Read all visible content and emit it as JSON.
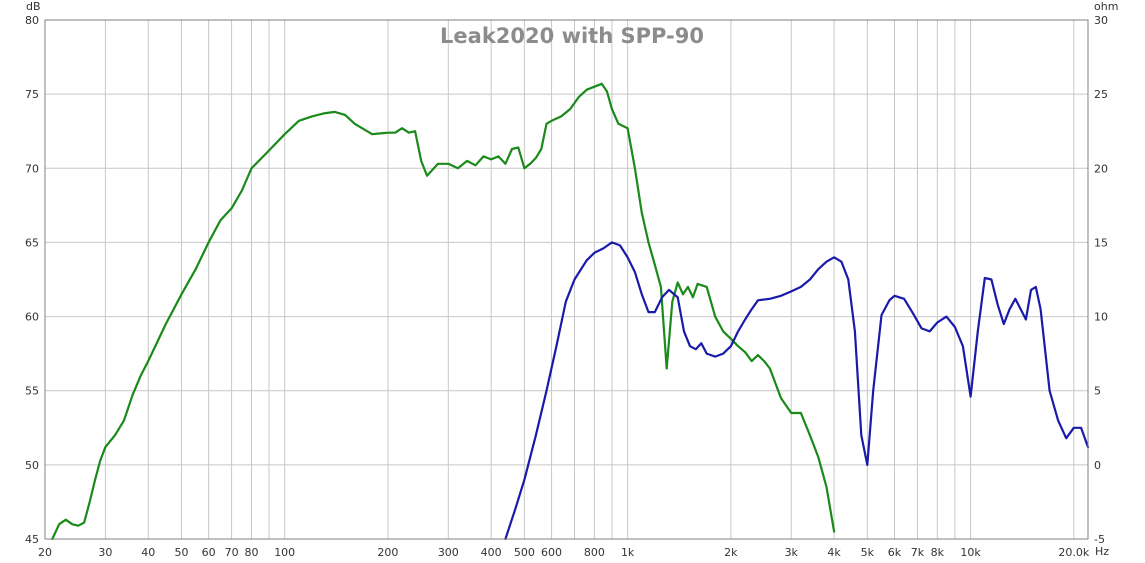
{
  "chart_data": {
    "type": "line",
    "title": "Leak2020 with SPP-90",
    "x_scale": "log",
    "xlim": [
      20,
      22000
    ],
    "x_unit": "Hz",
    "ylim_left": [
      45,
      80
    ],
    "ylim_right": [
      -5,
      30
    ],
    "y_unit_left": "dB",
    "y_unit_right": "ohm",
    "grid": true,
    "x_tick_labels": [
      {
        "v": 20,
        "t": "20"
      },
      {
        "v": 30,
        "t": "30"
      },
      {
        "v": 40,
        "t": "40"
      },
      {
        "v": 50,
        "t": "50"
      },
      {
        "v": 60,
        "t": "60"
      },
      {
        "v": 70,
        "t": "70"
      },
      {
        "v": 80,
        "t": "80"
      },
      {
        "v": 100,
        "t": "100"
      },
      {
        "v": 200,
        "t": "200"
      },
      {
        "v": 300,
        "t": "300"
      },
      {
        "v": 400,
        "t": "400"
      },
      {
        "v": 500,
        "t": "500"
      },
      {
        "v": 600,
        "t": "600"
      },
      {
        "v": 800,
        "t": "800"
      },
      {
        "v": 1000,
        "t": "1k"
      },
      {
        "v": 2000,
        "t": "2k"
      },
      {
        "v": 3000,
        "t": "3k"
      },
      {
        "v": 4000,
        "t": "4k"
      },
      {
        "v": 5000,
        "t": "5k"
      },
      {
        "v": 6000,
        "t": "6k"
      },
      {
        "v": 7000,
        "t": "7k"
      },
      {
        "v": 8000,
        "t": "8k"
      },
      {
        "v": 10000,
        "t": "10k"
      },
      {
        "v": 20000,
        "t": "20.0k"
      }
    ],
    "y_left_ticks": [
      "45",
      "50",
      "55",
      "60",
      "65",
      "70",
      "75",
      "80"
    ],
    "y_right_ticks": [
      "-5",
      "0",
      "5",
      "10",
      "15",
      "20",
      "25",
      "30"
    ],
    "series": [
      {
        "axis": "left",
        "color": "#1a8a1a",
        "x": [
          21,
          22,
          23,
          24,
          25,
          26,
          27,
          28,
          29,
          30,
          32,
          34,
          36,
          38,
          40,
          45,
          50,
          55,
          60,
          65,
          70,
          75,
          80,
          90,
          100,
          110,
          120,
          130,
          140,
          150,
          160,
          180,
          200,
          210,
          220,
          230,
          240,
          250,
          260,
          280,
          300,
          320,
          340,
          360,
          380,
          400,
          420,
          440,
          460,
          480,
          500,
          520,
          540,
          560,
          580,
          600,
          640,
          680,
          720,
          760,
          800,
          840,
          870,
          900,
          940,
          1000,
          1050,
          1100,
          1150,
          1200,
          1250,
          1300,
          1350,
          1400,
          1450,
          1500,
          1550,
          1600,
          1700,
          1800,
          1900,
          2000,
          2100,
          2200,
          2300,
          2400,
          2500,
          2600,
          2800,
          3000,
          3200,
          3400,
          3600,
          3800,
          4000
        ],
        "y": [
          45,
          46,
          46.3,
          46,
          45.9,
          46.1,
          47.5,
          49,
          50.3,
          51.2,
          52,
          53,
          54.7,
          56,
          57,
          59.5,
          61.5,
          63.2,
          65,
          66.5,
          67.3,
          68.5,
          70,
          71.2,
          72.3,
          73.2,
          73.5,
          73.7,
          73.8,
          73.6,
          73,
          72.3,
          72.4,
          72.4,
          72.7,
          72.4,
          72.5,
          70.5,
          69.5,
          70.3,
          70.3,
          70,
          70.5,
          70.2,
          70.8,
          70.6,
          70.8,
          70.3,
          71.3,
          71.4,
          70,
          70.3,
          70.7,
          71.3,
          73,
          73.2,
          73.5,
          74,
          74.8,
          75.3,
          75.5,
          75.7,
          75.2,
          74,
          73,
          72.7,
          70,
          67,
          65,
          63.5,
          62,
          56.5,
          61,
          62.3,
          61.5,
          62,
          61.3,
          62.2,
          62,
          60,
          59,
          58.5,
          58,
          57.6,
          57,
          57.4,
          57,
          56.5,
          54.5,
          53.5,
          53.5,
          52,
          50.5,
          48.5,
          45.5
        ]
      },
      {
        "axis": "right",
        "color": "#1a1aaa",
        "x": [
          440,
          470,
          500,
          540,
          580,
          620,
          660,
          700,
          760,
          800,
          850,
          900,
          950,
          1000,
          1050,
          1100,
          1150,
          1200,
          1260,
          1320,
          1400,
          1460,
          1520,
          1580,
          1640,
          1700,
          1800,
          1900,
          2000,
          2100,
          2200,
          2300,
          2400,
          2600,
          2800,
          3000,
          3200,
          3400,
          3600,
          3800,
          4000,
          4200,
          4400,
          4600,
          4800,
          5000,
          5200,
          5500,
          5800,
          6000,
          6400,
          6800,
          7200,
          7600,
          8000,
          8500,
          9000,
          9500,
          10000,
          10500,
          11000,
          11500,
          12000,
          12500,
          13000,
          13500,
          14000,
          14500,
          15000,
          15500,
          16000,
          17000,
          18000,
          19000,
          20000,
          21000,
          22000
        ],
        "y": [
          -5,
          -3,
          -1,
          2,
          5,
          8,
          11,
          12.5,
          13.8,
          14.3,
          14.6,
          15,
          14.8,
          14,
          13,
          11.5,
          10.3,
          10.3,
          11.3,
          11.8,
          11.3,
          9,
          8,
          7.8,
          8.2,
          7.5,
          7.3,
          7.5,
          8,
          9,
          9.8,
          10.5,
          11.1,
          11.2,
          11.4,
          11.7,
          12,
          12.5,
          13.2,
          13.7,
          14,
          13.7,
          12.5,
          9,
          2,
          0,
          5,
          10.1,
          11.1,
          11.4,
          11.2,
          10.2,
          9.2,
          9,
          9.6,
          10,
          9.3,
          8,
          4.6,
          9,
          12.6,
          12.5,
          10.8,
          9.5,
          10.5,
          11.2,
          10.5,
          9.8,
          11.8,
          12,
          10.5,
          5,
          3,
          1.8,
          2.5,
          2.5,
          1.2
        ]
      }
    ]
  }
}
